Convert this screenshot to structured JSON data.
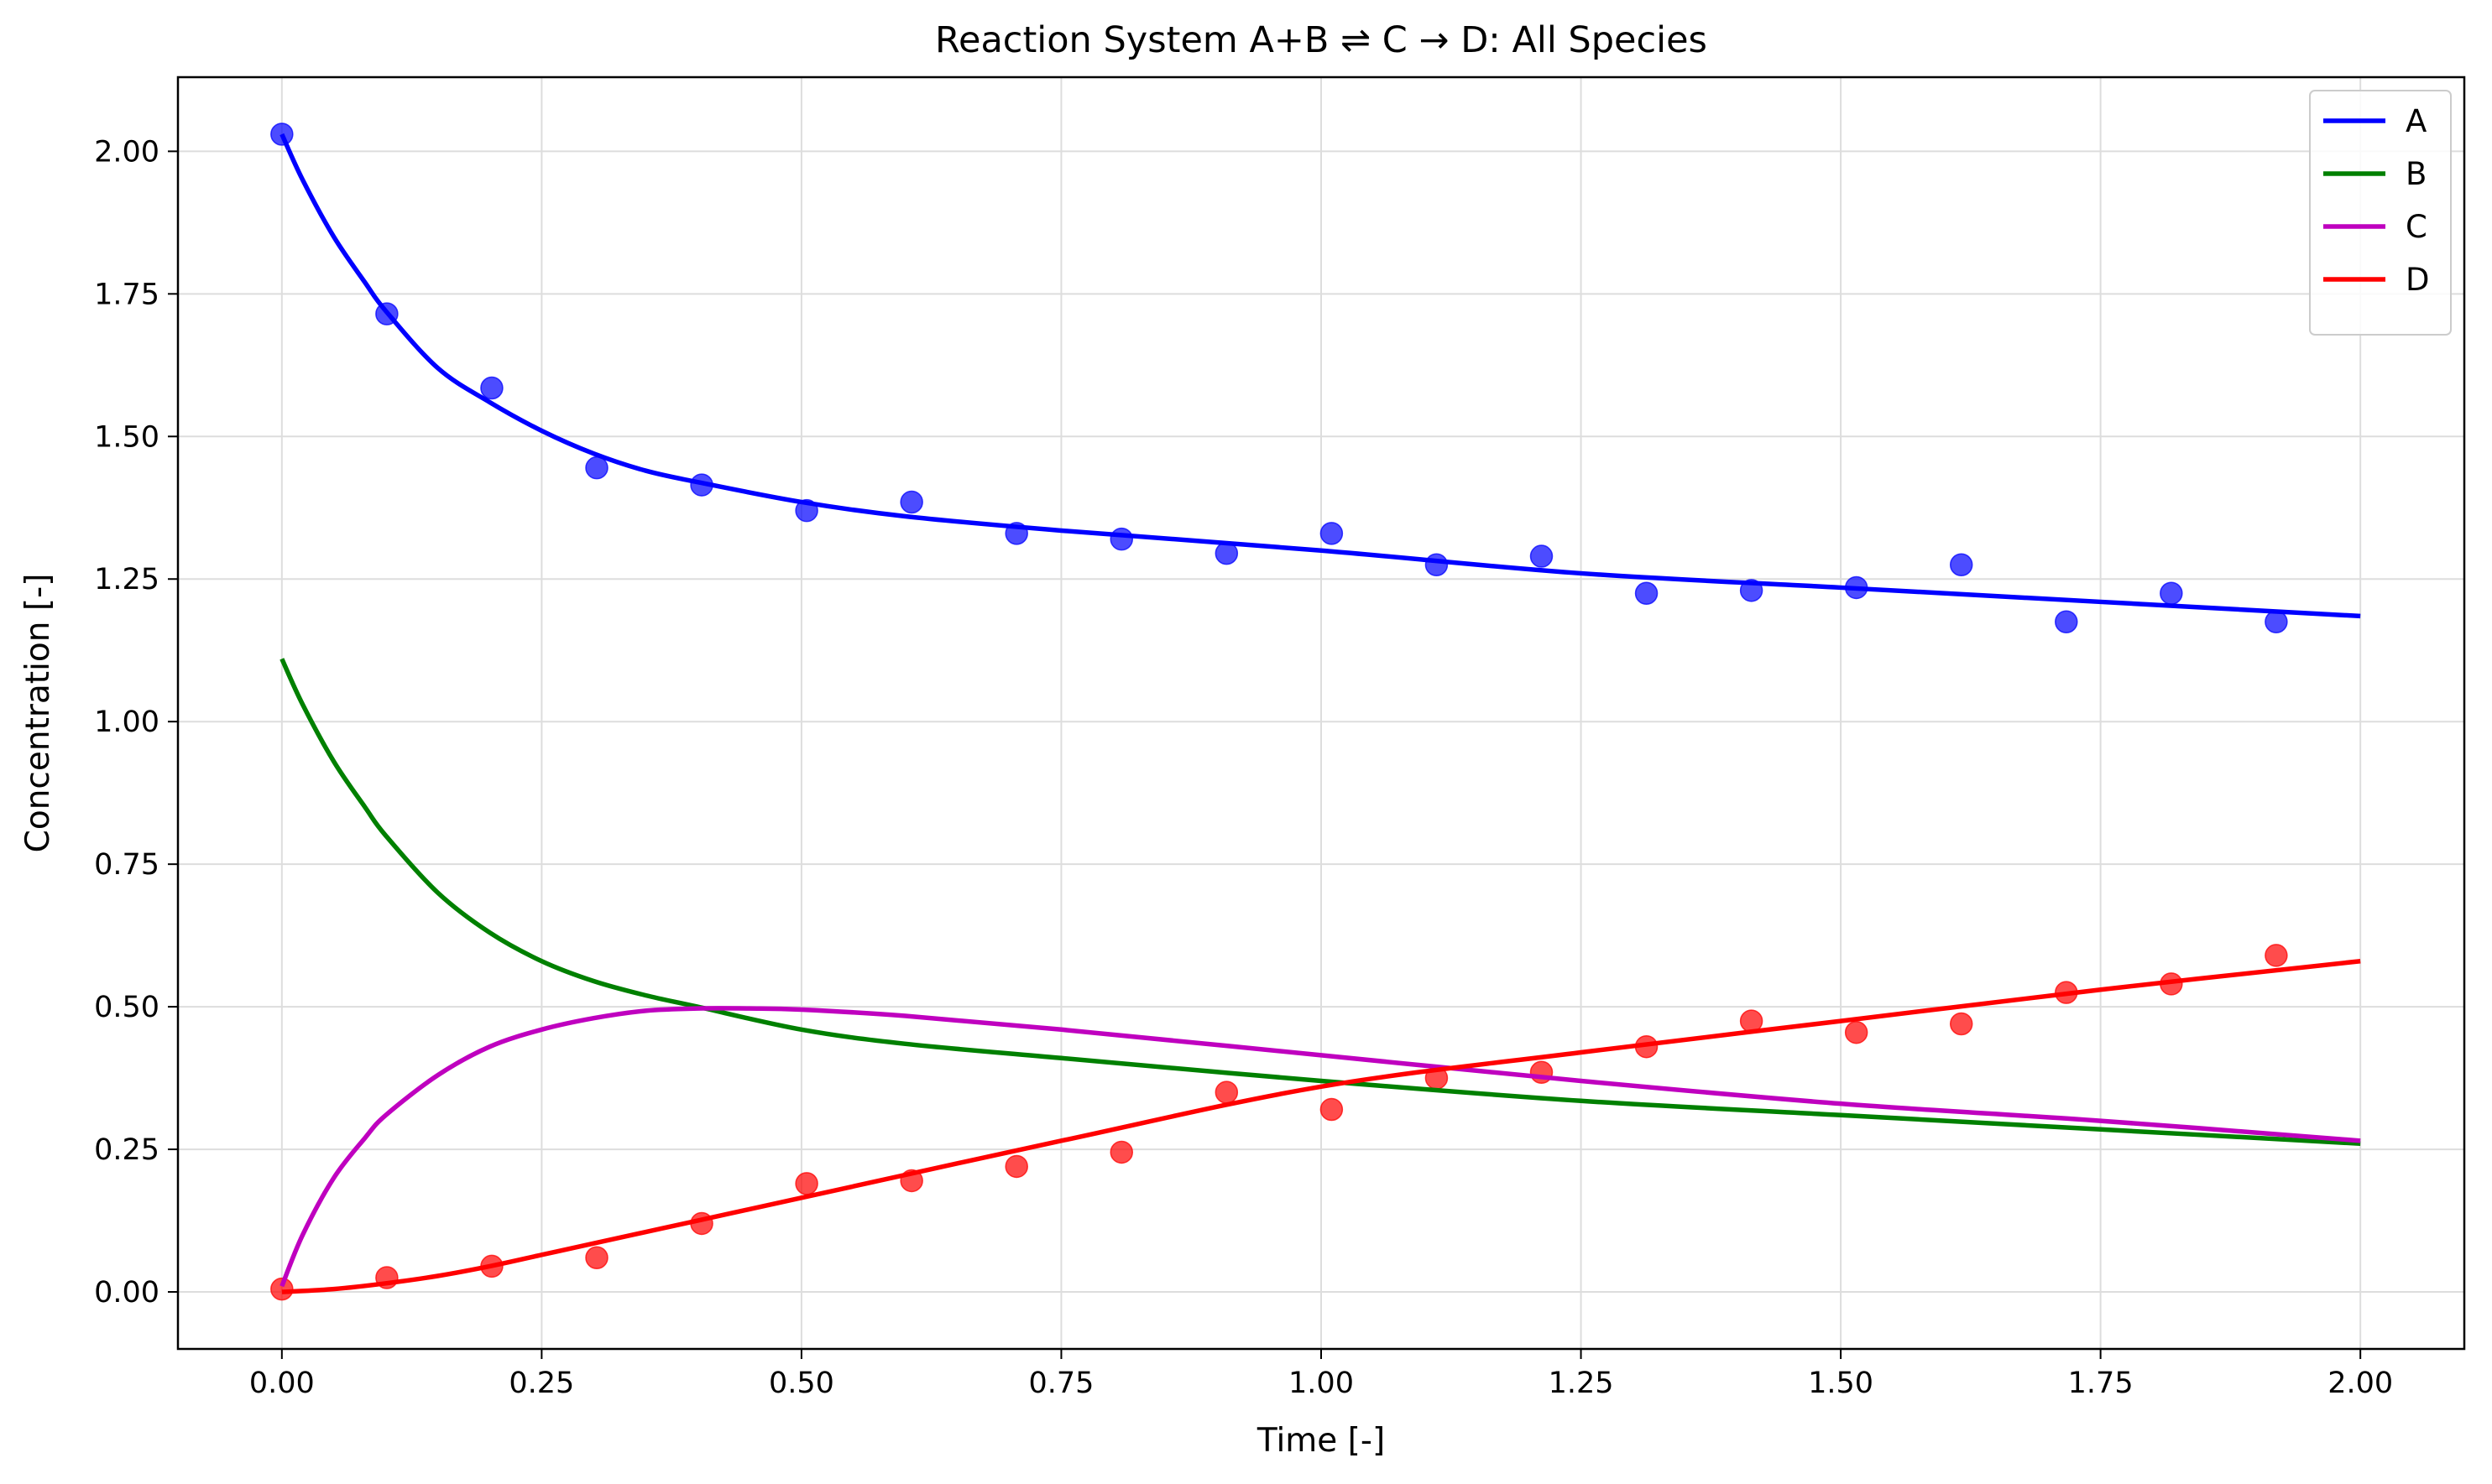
{
  "chart_data": {
    "type": "line",
    "title": "Reaction System A+B ⇌ C → D: All Species",
    "xlabel": "Time [-]",
    "ylabel": "Concentration [-]",
    "xlim": [
      -0.1,
      2.1
    ],
    "ylim": [
      -0.1,
      2.13
    ],
    "xticks": [
      0.0,
      0.25,
      0.5,
      0.75,
      1.0,
      1.25,
      1.5,
      1.75,
      2.0
    ],
    "xtick_labels": [
      "0.00",
      "0.25",
      "0.50",
      "0.75",
      "1.00",
      "1.25",
      "1.50",
      "1.75",
      "2.00"
    ],
    "yticks": [
      0.0,
      0.25,
      0.5,
      0.75,
      1.0,
      1.25,
      1.5,
      1.75,
      2.0
    ],
    "ytick_labels": [
      "0.00",
      "0.25",
      "0.50",
      "0.75",
      "1.00",
      "1.25",
      "1.50",
      "1.75",
      "2.00"
    ],
    "grid": true,
    "legend_position": "top-right",
    "series": [
      {
        "name": "A",
        "color": "#0000ff",
        "x": [
          0.0,
          0.02,
          0.05,
          0.08,
          0.1,
          0.15,
          0.2,
          0.25,
          0.3,
          0.35,
          0.4,
          0.5,
          0.6,
          0.75,
          1.0,
          1.25,
          1.5,
          1.75,
          2.0
        ],
        "y": [
          2.03,
          1.95,
          1.85,
          1.77,
          1.72,
          1.62,
          1.56,
          1.51,
          1.47,
          1.44,
          1.42,
          1.385,
          1.36,
          1.335,
          1.3,
          1.26,
          1.235,
          1.21,
          1.185
        ]
      },
      {
        "name": "B",
        "color": "#008000",
        "x": [
          0.0,
          0.02,
          0.05,
          0.08,
          0.1,
          0.15,
          0.2,
          0.25,
          0.3,
          0.35,
          0.4,
          0.5,
          0.6,
          0.75,
          1.0,
          1.25,
          1.5,
          1.75,
          2.0
        ],
        "y": [
          1.11,
          1.03,
          0.93,
          0.85,
          0.8,
          0.7,
          0.63,
          0.58,
          0.545,
          0.52,
          0.5,
          0.46,
          0.435,
          0.41,
          0.37,
          0.335,
          0.31,
          0.285,
          0.26
        ]
      },
      {
        "name": "C",
        "color": "#bf00bf",
        "x": [
          0.0,
          0.02,
          0.05,
          0.08,
          0.1,
          0.15,
          0.2,
          0.25,
          0.3,
          0.35,
          0.4,
          0.45,
          0.5,
          0.6,
          0.75,
          1.0,
          1.25,
          1.5,
          1.75,
          2.0
        ],
        "y": [
          0.01,
          0.1,
          0.2,
          0.27,
          0.31,
          0.38,
          0.43,
          0.46,
          0.48,
          0.493,
          0.497,
          0.497,
          0.495,
          0.484,
          0.46,
          0.415,
          0.37,
          0.33,
          0.3,
          0.265
        ]
      },
      {
        "name": "D",
        "color": "#ff0000",
        "x": [
          0.0,
          0.05,
          0.1,
          0.15,
          0.2,
          0.25,
          0.3,
          0.4,
          0.5,
          0.75,
          1.0,
          1.25,
          1.5,
          1.75,
          2.0
        ],
        "y": [
          0.0,
          0.005,
          0.015,
          0.028,
          0.045,
          0.065,
          0.085,
          0.125,
          0.165,
          0.265,
          0.36,
          0.42,
          0.475,
          0.53,
          0.58
        ]
      }
    ],
    "scatter": [
      {
        "name": "A",
        "color": "#0000ff",
        "x": [
          0.0,
          0.101,
          0.202,
          0.303,
          0.404,
          0.505,
          0.606,
          0.707,
          0.808,
          0.909,
          1.01,
          1.111,
          1.212,
          1.313,
          1.414,
          1.515,
          1.616,
          1.717,
          1.818,
          1.919
        ],
        "y": [
          2.03,
          1.715,
          1.585,
          1.445,
          1.415,
          1.37,
          1.385,
          1.33,
          1.32,
          1.295,
          1.33,
          1.275,
          1.29,
          1.225,
          1.23,
          1.235,
          1.275,
          1.175,
          1.225,
          1.175
        ]
      },
      {
        "name": "D",
        "color": "#ff0000",
        "x": [
          0.0,
          0.101,
          0.202,
          0.303,
          0.404,
          0.505,
          0.606,
          0.707,
          0.808,
          0.909,
          1.01,
          1.111,
          1.212,
          1.313,
          1.414,
          1.515,
          1.616,
          1.717,
          1.818,
          1.919
        ],
        "y": [
          0.005,
          0.025,
          0.045,
          0.06,
          0.12,
          0.19,
          0.195,
          0.22,
          0.245,
          0.35,
          0.32,
          0.375,
          0.385,
          0.43,
          0.475,
          0.455,
          0.47,
          0.525,
          0.54,
          0.59
        ]
      }
    ]
  }
}
